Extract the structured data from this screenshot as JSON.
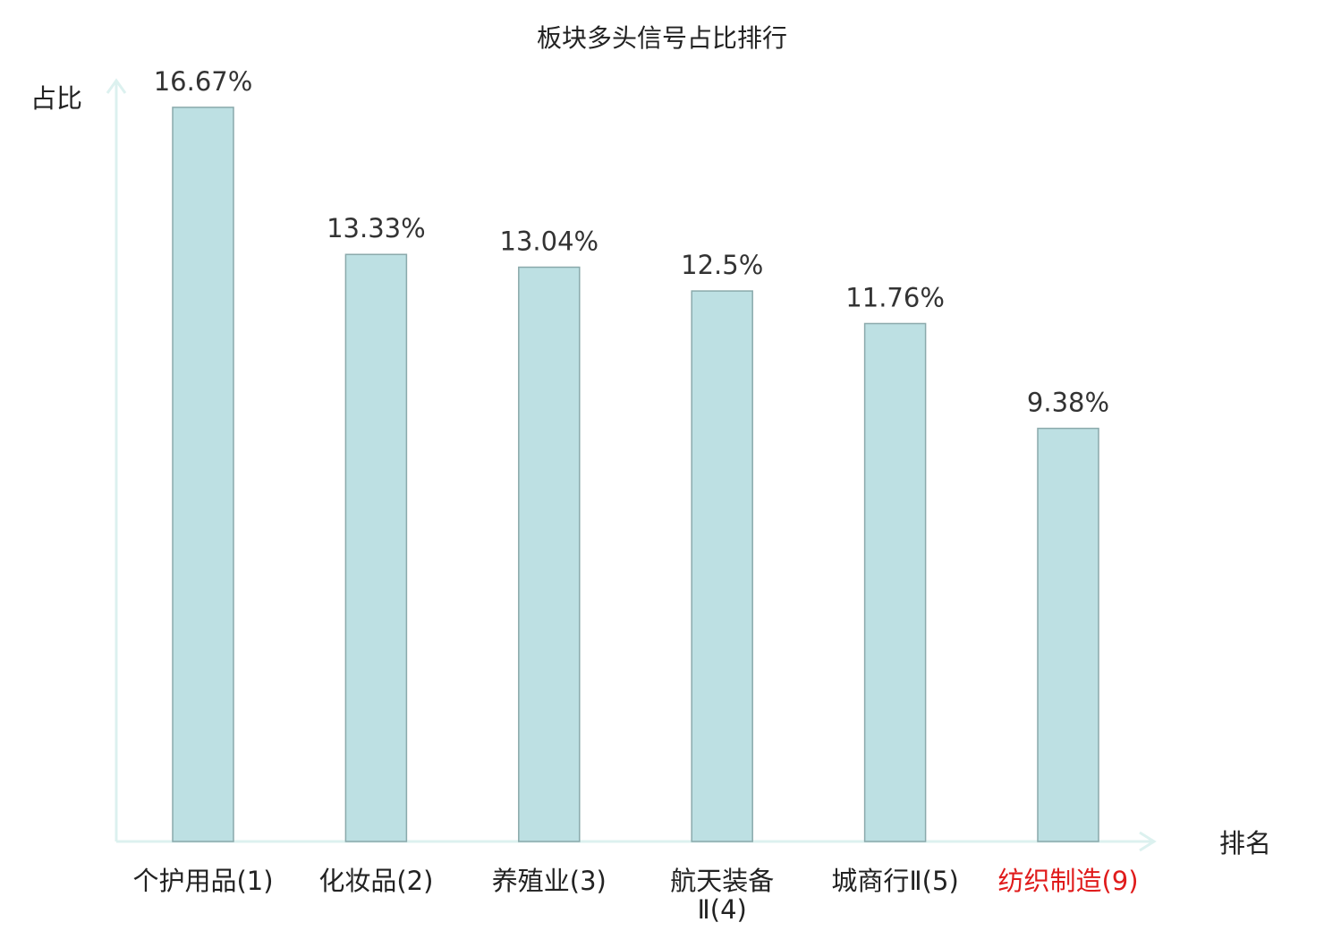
{
  "chart_data": {
    "type": "bar",
    "title": "板块多头信号占比排行",
    "ylabel": "占比",
    "xlabel": "排名",
    "ylim": [
      0,
      17.4
    ],
    "grid": false,
    "categories": [
      {
        "lines": [
          "个护用品(1)"
        ],
        "highlight": false
      },
      {
        "lines": [
          "化妆品(2)"
        ],
        "highlight": false
      },
      {
        "lines": [
          "养殖业(3)"
        ],
        "highlight": false
      },
      {
        "lines": [
          "航天装备",
          "Ⅱ(4)"
        ],
        "highlight": false
      },
      {
        "lines": [
          "城商行Ⅱ(5)"
        ],
        "highlight": false
      },
      {
        "lines": [
          "纺织制造(9)"
        ],
        "highlight": true
      }
    ],
    "values": [
      16.67,
      13.33,
      13.04,
      12.5,
      11.76,
      9.38
    ],
    "value_labels": [
      "16.67%",
      "13.33%",
      "13.04%",
      "12.5%",
      "11.76%",
      "9.38%"
    ],
    "colors": {
      "bar_fill": "#bde0e3",
      "bar_stroke": "#8aa9ab",
      "axis": "#dcf1ef",
      "label": "#222222",
      "highlight": "#e01b1b"
    }
  }
}
